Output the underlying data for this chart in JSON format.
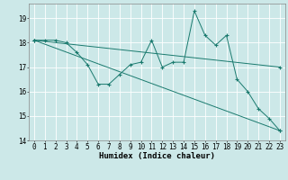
{
  "title": "",
  "xlabel": "Humidex (Indice chaleur)",
  "background_color": "#cce8e8",
  "grid_color": "#ffffff",
  "line_color": "#1a7a6e",
  "xlim": [
    -0.5,
    23.5
  ],
  "ylim": [
    14.0,
    19.6
  ],
  "yticks": [
    14,
    15,
    16,
    17,
    18,
    19
  ],
  "xticks": [
    0,
    1,
    2,
    3,
    4,
    5,
    6,
    7,
    8,
    9,
    10,
    11,
    12,
    13,
    14,
    15,
    16,
    17,
    18,
    19,
    20,
    21,
    22,
    23
  ],
  "line1_x": [
    0,
    1,
    2,
    3,
    4,
    5,
    6,
    7,
    8,
    9,
    10,
    11,
    12,
    13,
    14,
    15,
    16,
    17,
    18,
    19,
    20,
    21,
    22,
    23
  ],
  "line1_y": [
    18.1,
    18.1,
    18.1,
    18.0,
    17.6,
    17.1,
    16.3,
    16.3,
    16.7,
    17.1,
    17.2,
    18.1,
    17.0,
    17.2,
    17.2,
    19.3,
    18.3,
    17.9,
    18.3,
    16.5,
    16.0,
    15.3,
    14.9,
    14.4
  ],
  "line2_x": [
    0,
    23
  ],
  "line2_y": [
    18.1,
    17.0
  ],
  "line3_x": [
    0,
    23
  ],
  "line3_y": [
    18.1,
    14.4
  ],
  "font_size_label": 6.5,
  "font_size_tick": 5.5,
  "marker_size": 3.0,
  "linewidth": 0.7
}
